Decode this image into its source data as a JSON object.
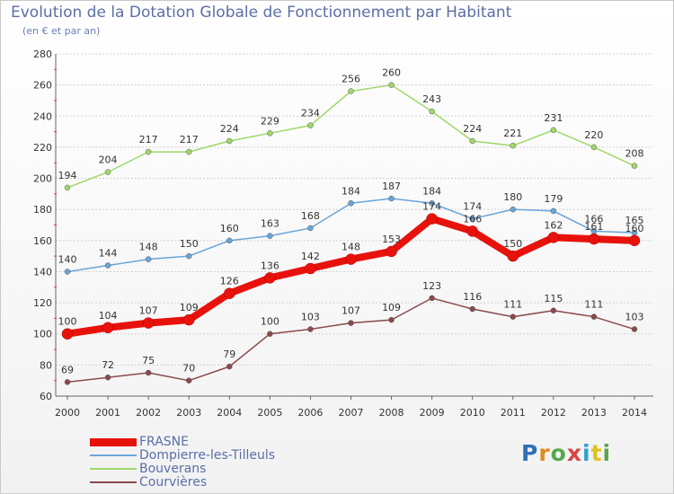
{
  "header": {
    "title": "Evolution de la Dotation Globale de Fonctionnement par Habitant",
    "subtitle": "(en € et par an)"
  },
  "brand": {
    "text": "Proxiti",
    "letter_colors": [
      "#2f6fb5",
      "#e08a1e",
      "#57a84a",
      "#d64545",
      "#2f9fd4",
      "#e0c01e",
      "#57a84a"
    ]
  },
  "chart_data": {
    "type": "line",
    "title": "Evolution de la Dotation Globale de Fonctionnement par Habitant",
    "subtitle": "(en € et par an)",
    "xlabel": "",
    "ylabel": "",
    "x": [
      "2000",
      "2001",
      "2002",
      "2003",
      "2004",
      "2005",
      "2006",
      "2007",
      "2008",
      "2009",
      "2010",
      "2011",
      "2012",
      "2013",
      "2014"
    ],
    "ylim": [
      60,
      280
    ],
    "yticks": [
      60,
      80,
      100,
      120,
      140,
      160,
      180,
      200,
      220,
      240,
      260,
      280
    ],
    "grid": true,
    "legend_position": "bottom-left",
    "series": [
      {
        "name": "FRASNE",
        "color": "#e8120c",
        "emphasis": true,
        "values": [
          100,
          104,
          107,
          109,
          126,
          136,
          142,
          148,
          153,
          174,
          166,
          150,
          162,
          161,
          160
        ]
      },
      {
        "name": "Dompierre-les-Tilleuls",
        "color": "#6aa5d8",
        "emphasis": false,
        "values": [
          140,
          144,
          148,
          150,
          160,
          163,
          168,
          184,
          187,
          184,
          174,
          180,
          179,
          166,
          165
        ]
      },
      {
        "name": "Bouverans",
        "color": "#9fd86a",
        "emphasis": false,
        "values": [
          194,
          204,
          217,
          217,
          224,
          229,
          234,
          256,
          260,
          243,
          224,
          221,
          231,
          220,
          208
        ]
      },
      {
        "name": "Courvières",
        "color": "#8b4a4a",
        "emphasis": false,
        "values": [
          69,
          72,
          75,
          70,
          79,
          100,
          103,
          107,
          109,
          123,
          116,
          111,
          115,
          111,
          103
        ]
      }
    ]
  }
}
